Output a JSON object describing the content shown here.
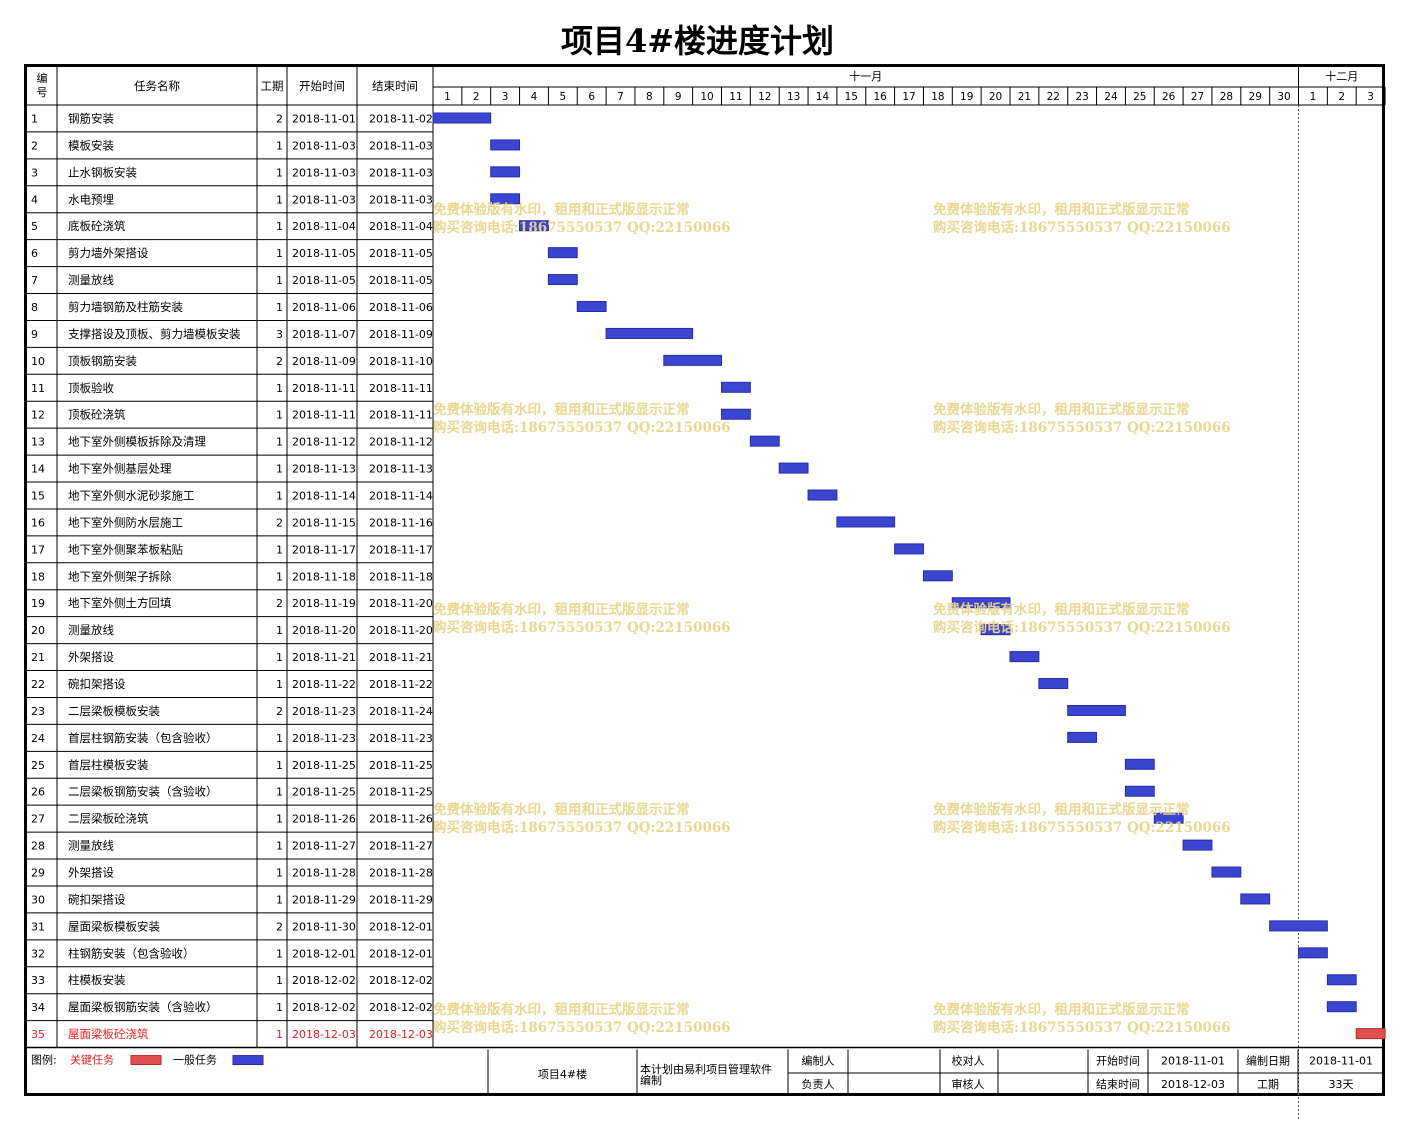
{
  "title": "项目4#楼进度计划",
  "headers": {
    "id": "编号",
    "name": "任务名称",
    "duration": "工期",
    "start": "开始时间",
    "end": "结束时间"
  },
  "months": [
    {
      "label": "十一月",
      "days": [
        "1",
        "2",
        "3",
        "4",
        "5",
        "6",
        "7",
        "8",
        "9",
        "10",
        "11",
        "12",
        "13",
        "14",
        "15",
        "16",
        "17",
        "18",
        "19",
        "20",
        "21",
        "22",
        "23",
        "24",
        "25",
        "26",
        "27",
        "28",
        "29",
        "30"
      ]
    },
    {
      "label": "十二月",
      "days": [
        "1",
        "2",
        "3"
      ]
    }
  ],
  "colors": {
    "normal": "#2a2aa8",
    "normal_fill": "#3a46d0",
    "critical": "#b32a2a",
    "critical_fill": "#e05050",
    "critical_text": "#e02020",
    "watermark": "#e8d58a"
  },
  "chart_data": {
    "type": "gantt",
    "x_start": "2018-11-01",
    "x_end": "2018-12-03",
    "tasks": [
      {
        "id": "1",
        "name": "钢筋安装",
        "duration": "2",
        "start": "2018-11-01",
        "end": "2018-11-02",
        "critical": false
      },
      {
        "id": "2",
        "name": "模板安装",
        "duration": "1",
        "start": "2018-11-03",
        "end": "2018-11-03",
        "critical": false
      },
      {
        "id": "3",
        "name": "止水钢板安装",
        "duration": "1",
        "start": "2018-11-03",
        "end": "2018-11-03",
        "critical": false
      },
      {
        "id": "4",
        "name": "水电预埋",
        "duration": "1",
        "start": "2018-11-03",
        "end": "2018-11-03",
        "critical": false
      },
      {
        "id": "5",
        "name": "底板砼浇筑",
        "duration": "1",
        "start": "2018-11-04",
        "end": "2018-11-04",
        "critical": false
      },
      {
        "id": "6",
        "name": "剪力墙外架搭设",
        "duration": "1",
        "start": "2018-11-05",
        "end": "2018-11-05",
        "critical": false
      },
      {
        "id": "7",
        "name": "测量放线",
        "duration": "1",
        "start": "2018-11-05",
        "end": "2018-11-05",
        "critical": false
      },
      {
        "id": "8",
        "name": "剪力墙钢筋及柱筋安装",
        "duration": "1",
        "start": "2018-11-06",
        "end": "2018-11-06",
        "critical": false
      },
      {
        "id": "9",
        "name": "支撑搭设及顶板、剪力墙模板安装",
        "duration": "3",
        "start": "2018-11-07",
        "end": "2018-11-09",
        "critical": false
      },
      {
        "id": "10",
        "name": "顶板钢筋安装",
        "duration": "2",
        "start": "2018-11-09",
        "end": "2018-11-10",
        "critical": false
      },
      {
        "id": "11",
        "name": "顶板验收",
        "duration": "1",
        "start": "2018-11-11",
        "end": "2018-11-11",
        "critical": false
      },
      {
        "id": "12",
        "name": "顶板砼浇筑",
        "duration": "1",
        "start": "2018-11-11",
        "end": "2018-11-11",
        "critical": false
      },
      {
        "id": "13",
        "name": "地下室外侧模板拆除及清理",
        "duration": "1",
        "start": "2018-11-12",
        "end": "2018-11-12",
        "critical": false
      },
      {
        "id": "14",
        "name": "地下室外侧基层处理",
        "duration": "1",
        "start": "2018-11-13",
        "end": "2018-11-13",
        "critical": false
      },
      {
        "id": "15",
        "name": "地下室外侧水泥砂浆施工",
        "duration": "1",
        "start": "2018-11-14",
        "end": "2018-11-14",
        "critical": false
      },
      {
        "id": "16",
        "name": "地下室外侧防水层施工",
        "duration": "2",
        "start": "2018-11-15",
        "end": "2018-11-16",
        "critical": false
      },
      {
        "id": "17",
        "name": "地下室外侧聚苯板粘贴",
        "duration": "1",
        "start": "2018-11-17",
        "end": "2018-11-17",
        "critical": false
      },
      {
        "id": "18",
        "name": "地下室外侧架子拆除",
        "duration": "1",
        "start": "2018-11-18",
        "end": "2018-11-18",
        "critical": false
      },
      {
        "id": "19",
        "name": "地下室外侧土方回填",
        "duration": "2",
        "start": "2018-11-19",
        "end": "2018-11-20",
        "critical": false
      },
      {
        "id": "20",
        "name": "测量放线",
        "duration": "1",
        "start": "2018-11-20",
        "end": "2018-11-20",
        "critical": false
      },
      {
        "id": "21",
        "name": "外架搭设",
        "duration": "1",
        "start": "2018-11-21",
        "end": "2018-11-21",
        "critical": false
      },
      {
        "id": "22",
        "name": "碗扣架搭设",
        "duration": "1",
        "start": "2018-11-22",
        "end": "2018-11-22",
        "critical": false
      },
      {
        "id": "23",
        "name": "二层梁板模板安装",
        "duration": "2",
        "start": "2018-11-23",
        "end": "2018-11-24",
        "critical": false
      },
      {
        "id": "24",
        "name": "首层柱钢筋安装（包含验收）",
        "duration": "1",
        "start": "2018-11-23",
        "end": "2018-11-23",
        "critical": false
      },
      {
        "id": "25",
        "name": "首层柱模板安装",
        "duration": "1",
        "start": "2018-11-25",
        "end": "2018-11-25",
        "critical": false
      },
      {
        "id": "26",
        "name": "二层梁板钢筋安装（含验收）",
        "duration": "1",
        "start": "2018-11-25",
        "end": "2018-11-25",
        "critical": false
      },
      {
        "id": "27",
        "name": "二层梁板砼浇筑",
        "duration": "1",
        "start": "2018-11-26",
        "end": "2018-11-26",
        "critical": false
      },
      {
        "id": "28",
        "name": "测量放线",
        "duration": "1",
        "start": "2018-11-27",
        "end": "2018-11-27",
        "critical": false
      },
      {
        "id": "29",
        "name": "外架搭设",
        "duration": "1",
        "start": "2018-11-28",
        "end": "2018-11-28",
        "critical": false
      },
      {
        "id": "30",
        "name": "碗扣架搭设",
        "duration": "1",
        "start": "2018-11-29",
        "end": "2018-11-29",
        "critical": false
      },
      {
        "id": "31",
        "name": "屋面梁板模板安装",
        "duration": "2",
        "start": "2018-11-30",
        "end": "2018-12-01",
        "critical": false
      },
      {
        "id": "32",
        "name": "柱钢筋安装（包含验收）",
        "duration": "1",
        "start": "2018-12-01",
        "end": "2018-12-01",
        "critical": false
      },
      {
        "id": "33",
        "name": "柱模板安装",
        "duration": "1",
        "start": "2018-12-02",
        "end": "2018-12-02",
        "critical": false
      },
      {
        "id": "34",
        "name": "屋面梁板钢筋安装（含验收）",
        "duration": "1",
        "start": "2018-12-02",
        "end": "2018-12-02",
        "critical": false
      },
      {
        "id": "35",
        "name": "屋面梁板砼浇筑",
        "duration": "1",
        "start": "2018-12-03",
        "end": "2018-12-03",
        "critical": true
      }
    ]
  },
  "legend": {
    "label": "图例:",
    "critical": "关键任务",
    "normal": "一般任务"
  },
  "footer": {
    "project": "项目4#楼",
    "software_note": "本计划由易利项目管理软件编制",
    "editor_label": "编制人",
    "editor": "",
    "checker_label": "校对人",
    "checker": "",
    "owner_label": "负责人",
    "owner": "",
    "reviewer_label": "审核人",
    "reviewer": "",
    "start_label": "开始时间",
    "start": "2018-11-01",
    "end_label": "结束时间",
    "end": "2018-12-03",
    "made_date_label": "编制日期",
    "made_date": "2018-11-01",
    "duration_label": "工期",
    "duration": "33天"
  },
  "watermark": {
    "line1": "免费体验版有水印，租用和正式版显示正常",
    "line2": "购买咨询电话:18675550537 QQ:22150066"
  }
}
